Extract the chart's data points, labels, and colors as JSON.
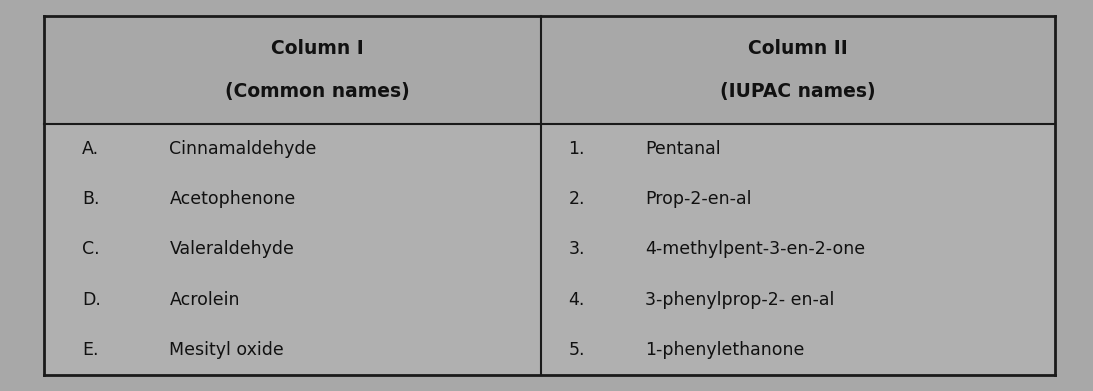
{
  "outer_bg": "#a8a8a8",
  "table_bg": "#b0b0b0",
  "header_bg": "#a8a8a8",
  "border_color": "#1a1a1a",
  "text_color": "#111111",
  "col1_header_line1": "Column I",
  "col1_header_line2": "(Common names)",
  "col2_header_line1": "Column II",
  "col2_header_line2": "(IUPAC names)",
  "col1_labels": [
    "A.",
    "B.",
    "C.",
    "D.",
    "E."
  ],
  "col1_items": [
    "Cinnamaldehyde",
    "Acetophenone",
    "Valeraldehyde",
    "Acrolein",
    "Mesityl oxide"
  ],
  "col2_labels": [
    "1.",
    "2.",
    "3.",
    "4.",
    "5."
  ],
  "col2_items": [
    "Pentanal",
    "Prop-2-en-al",
    "4-methylpent-3-en-2-one",
    "3-phenylprop-2- en-al",
    "1-phenylethanone"
  ],
  "figwidth": 10.93,
  "figheight": 3.91,
  "dpi": 100
}
